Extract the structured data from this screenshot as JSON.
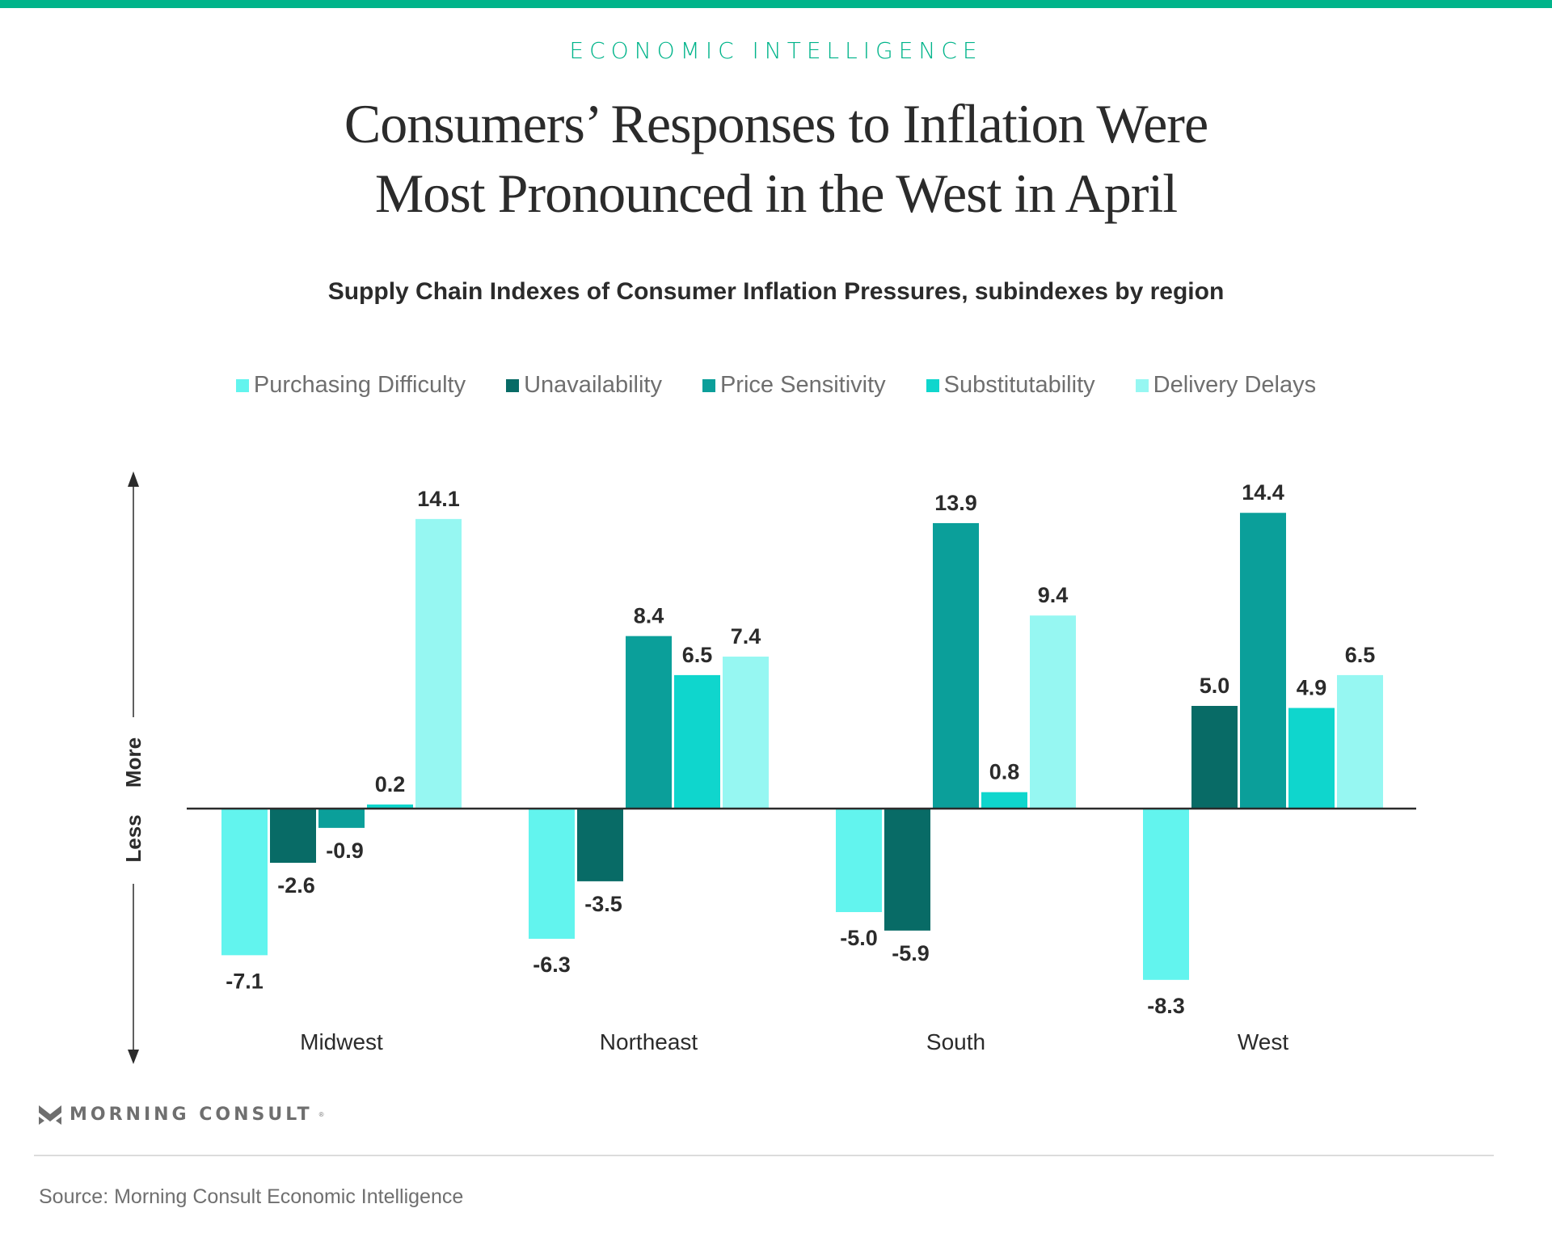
{
  "brand": {
    "accent_color": "#00b48a",
    "kicker": "ECONOMIC INTELLIGENCE",
    "logo_text": "MORNING CONSULT",
    "logo_mark": "registered",
    "logo_icon": "morning-consult-m-icon"
  },
  "title_lines": [
    "Consumers’ Responses to Inflation Were",
    "Most Pronounced in the West in April"
  ],
  "source": "Source: Morning Consult Economic Intelligence",
  "chart_data": {
    "type": "bar",
    "title": "Consumers’ Responses to Inflation Were Most Pronounced in the West in April",
    "subtitle": "Supply Chain Indexes of Consumer Inflation Pressures, subindexes by region",
    "xlabel": "",
    "ylabel": "",
    "y_direction_labels": {
      "up": "More",
      "down": "Less"
    },
    "categories": [
      "Midwest",
      "Northeast",
      "South",
      "West"
    ],
    "series": [
      {
        "name": "Purchasing Difficulty",
        "color": "#62f4ee",
        "values": [
          -7.1,
          -6.3,
          -5.0,
          -8.3
        ]
      },
      {
        "name": "Unavailability",
        "color": "#086b66",
        "values": [
          -2.6,
          -3.5,
          -5.9,
          5.0
        ]
      },
      {
        "name": "Price Sensitivity",
        "color": "#0b9f9a",
        "values": [
          -0.9,
          8.4,
          13.9,
          14.4
        ]
      },
      {
        "name": "Substitutability",
        "color": "#0fd6cd",
        "values": [
          0.2,
          6.5,
          0.8,
          4.9
        ]
      },
      {
        "name": "Delivery Delays",
        "color": "#96f7f2",
        "values": [
          14.1,
          7.4,
          9.4,
          6.5
        ]
      }
    ],
    "ylim": [
      -10,
      16
    ],
    "grid": false,
    "data_labels": true,
    "legend_position": "top-center"
  }
}
